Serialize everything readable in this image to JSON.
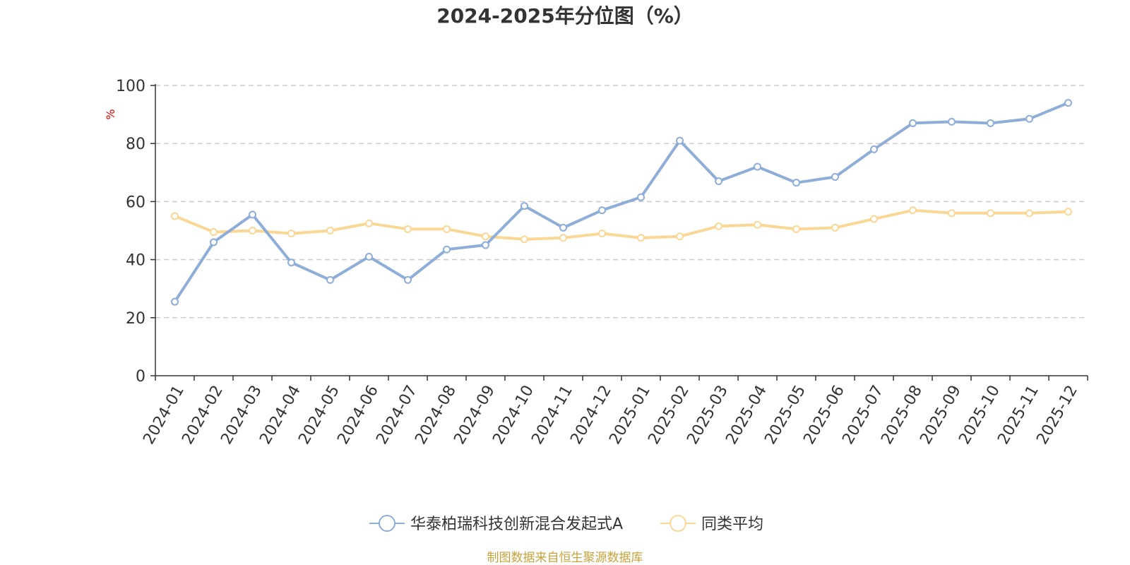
{
  "chart_data": {
    "type": "line",
    "title": "2024-2025年分位图（%）",
    "ylabel": "%",
    "xlabel": "",
    "ylim": [
      0,
      100
    ],
    "yticks": [
      "0",
      "20",
      "40",
      "60",
      "80",
      "100"
    ],
    "grid": true,
    "legend_position": "bottom",
    "categories": [
      "2024-01",
      "2024-02",
      "2024-03",
      "2024-04",
      "2024-05",
      "2024-06",
      "2024-07",
      "2024-08",
      "2024-09",
      "2024-10",
      "2024-11",
      "2024-12",
      "2025-01",
      "2025-02",
      "2025-03",
      "2025-04",
      "2025-05",
      "2025-06",
      "2025-07",
      "2025-08",
      "2025-09",
      "2025-10",
      "2025-11",
      "2025-12"
    ],
    "series": [
      {
        "name": "华泰柏瑞科技创新混合发起式A",
        "color": "#8eadd8",
        "values": [
          25.5,
          46,
          55.5,
          39,
          33,
          41,
          33,
          43.5,
          45,
          58.5,
          51,
          57,
          61.5,
          81,
          67,
          72,
          66.5,
          68.5,
          78,
          87,
          87.5,
          87,
          88.5,
          94
        ]
      },
      {
        "name": "同类平均",
        "color": "#fad795",
        "values": [
          55,
          49.5,
          50,
          49,
          50,
          52.5,
          50.5,
          50.5,
          48,
          47,
          47.5,
          49,
          47.5,
          48,
          51.5,
          52,
          50.5,
          51,
          54,
          57,
          56,
          56,
          56,
          56.5
        ]
      }
    ],
    "source": "制图数据来自恒生聚源数据库",
    "colors": {
      "axis": "#333333",
      "grid": "#cccccc",
      "unit": "#e60000",
      "source": "#c8a23c"
    }
  }
}
